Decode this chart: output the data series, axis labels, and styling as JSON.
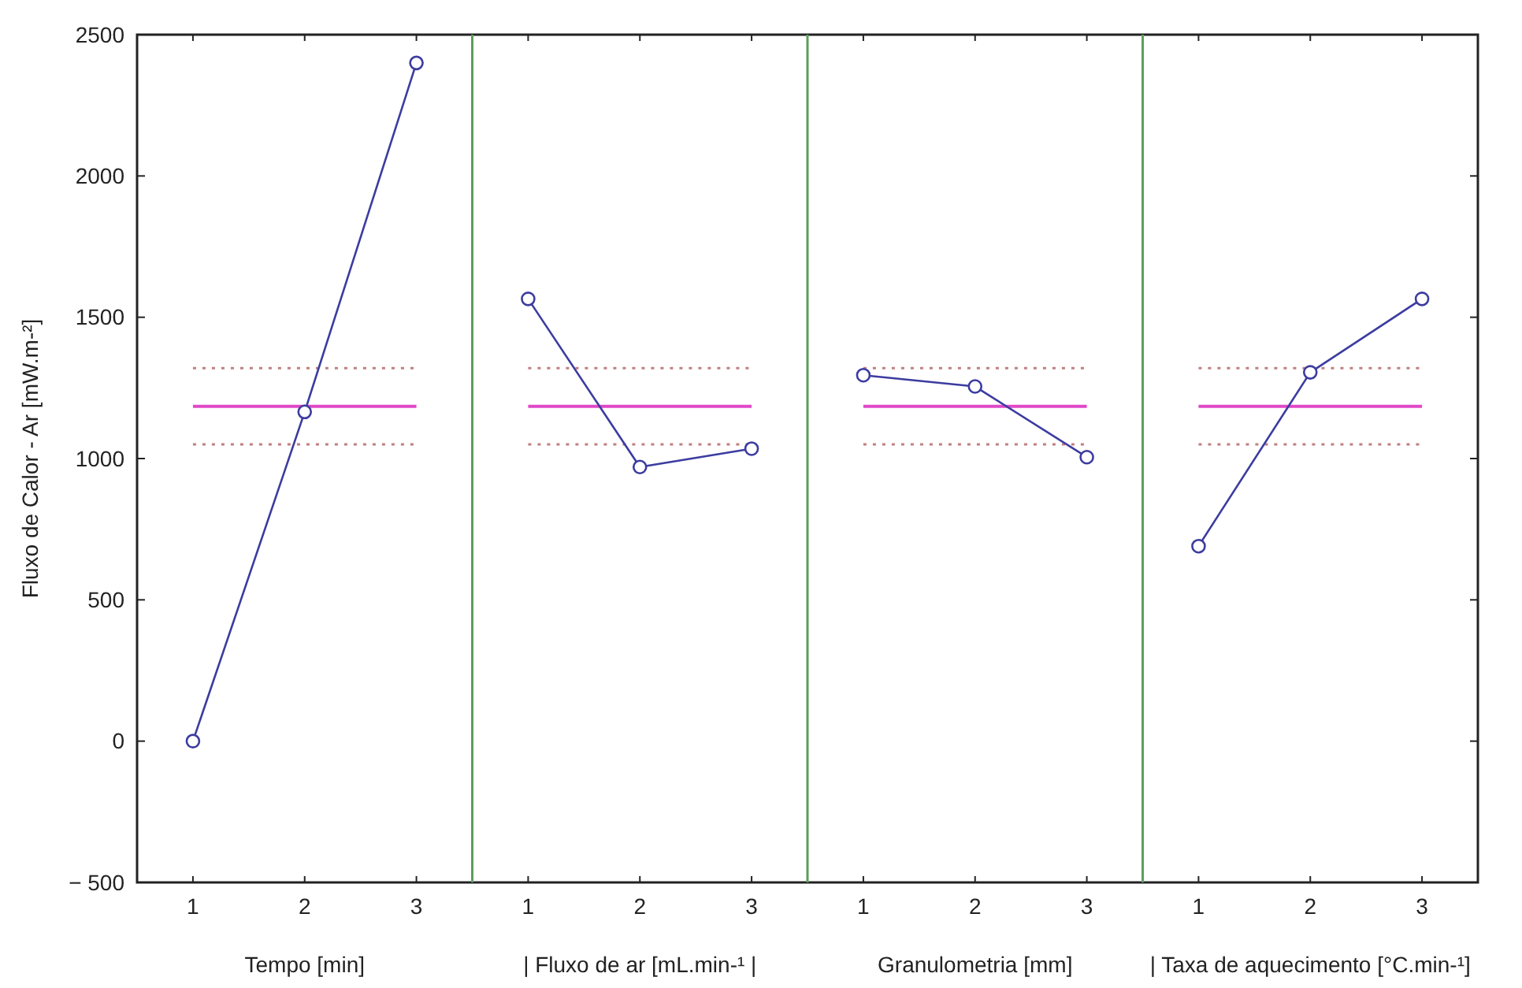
{
  "chart_data": [
    {
      "type": "line",
      "categories": [
        "1",
        "2",
        "3"
      ],
      "xlabel": "Tempo [min]",
      "ylabel": "Fluxo de Calor - Ar [mW.m-²]",
      "ylim": [
        -500,
        2500
      ],
      "yticks": [
        {
          "value": -500,
          "label": "− 500"
        },
        0,
        500,
        1000,
        1500,
        2000,
        2500
      ],
      "marker": "circle",
      "line_style": "solid",
      "series": [
        {
          "color": "#3c3ca0",
          "values": [
            0,
            1165,
            2400
          ]
        }
      ],
      "ref_lines": [
        {
          "axis": "y",
          "value": 1185,
          "color": "#e048c8",
          "line_style": "solid"
        },
        {
          "axis": "y",
          "value": 1320,
          "color": "#c08080",
          "line_style": "dotted"
        },
        {
          "axis": "y",
          "value": 1050,
          "color": "#c08080",
          "line_style": "dotted"
        }
      ]
    },
    {
      "type": "line",
      "categories": [
        "1",
        "2",
        "3"
      ],
      "xlabel": "| Fluxo de ar [mL.min-¹ |",
      "ylim": [
        -500,
        2500
      ],
      "tick_labels": "x",
      "marker": "circle",
      "line_style": "solid",
      "series": [
        {
          "color": "#3c3ca0",
          "values": [
            1565,
            970,
            1035
          ]
        }
      ],
      "ref_lines": [
        {
          "axis": "y",
          "value": 1185,
          "color": "#e048c8",
          "line_style": "solid"
        },
        {
          "axis": "y",
          "value": 1320,
          "color": "#c08080",
          "line_style": "dotted"
        },
        {
          "axis": "y",
          "value": 1050,
          "color": "#c08080",
          "line_style": "dotted"
        }
      ]
    },
    {
      "type": "line",
      "categories": [
        "1",
        "2",
        "3"
      ],
      "xlabel": "Granulometria [mm]",
      "ylim": [
        -500,
        2500
      ],
      "tick_labels": "x",
      "marker": "circle",
      "line_style": "solid",
      "series": [
        {
          "color": "#3c3ca0",
          "values": [
            1295,
            1255,
            1005
          ]
        }
      ],
      "ref_lines": [
        {
          "axis": "y",
          "value": 1185,
          "color": "#e048c8",
          "line_style": "solid"
        },
        {
          "axis": "y",
          "value": 1320,
          "color": "#c08080",
          "line_style": "dotted"
        },
        {
          "axis": "y",
          "value": 1050,
          "color": "#c08080",
          "line_style": "dotted"
        }
      ]
    },
    {
      "type": "line",
      "categories": [
        "1",
        "2",
        "3"
      ],
      "xlabel": "| Taxa de aquecimento [°C.min-¹]",
      "ylim": [
        -500,
        2500
      ],
      "tick_labels": "x",
      "marker": "circle",
      "line_style": "solid",
      "series": [
        {
          "color": "#3c3ca0",
          "values": [
            690,
            1305,
            1565
          ]
        }
      ],
      "ref_lines": [
        {
          "axis": "y",
          "value": 1185,
          "color": "#e048c8",
          "line_style": "solid"
        },
        {
          "axis": "y",
          "value": 1320,
          "color": "#c08080",
          "line_style": "dotted"
        },
        {
          "axis": "y",
          "value": 1050,
          "color": "#c08080",
          "line_style": "dotted"
        }
      ]
    }
  ]
}
